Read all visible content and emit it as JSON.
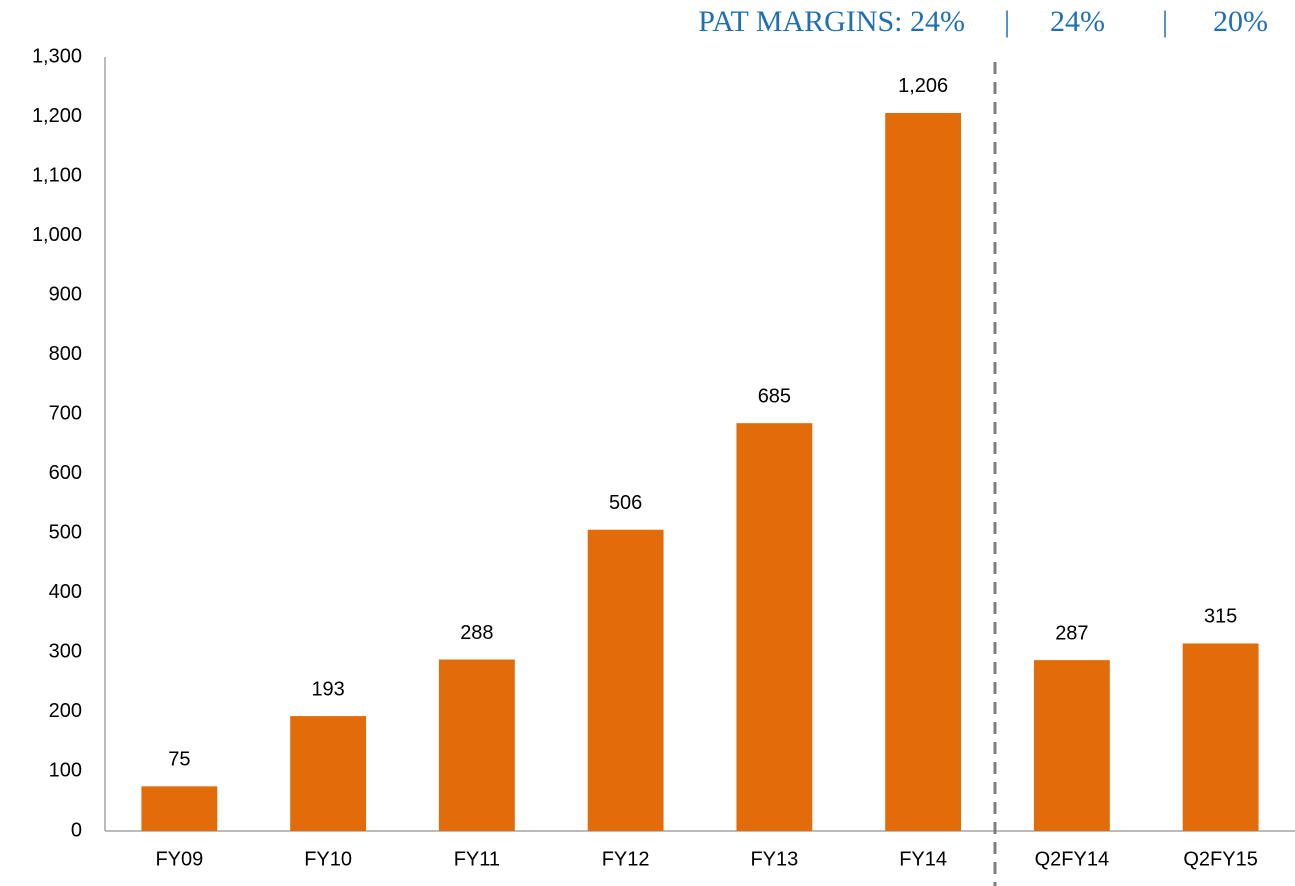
{
  "chart_data": {
    "type": "bar",
    "annotations": [
      "PAT MARGINS: 24%",
      "|",
      "24%",
      "|",
      "20%"
    ],
    "categories": [
      "FY09",
      "FY10",
      "FY11",
      "FY12",
      "FY13",
      "FY14",
      "Q2FY14",
      "Q2FY15"
    ],
    "values": [
      75,
      193,
      288,
      506,
      685,
      1206,
      287,
      315
    ],
    "value_labels": [
      "75",
      "193",
      "288",
      "506",
      "685",
      "1,206",
      "287",
      "315"
    ],
    "color": "#e36c0a",
    "ylim": [
      0,
      1300
    ],
    "yticks": [
      0,
      100,
      200,
      300,
      400,
      500,
      600,
      700,
      800,
      900,
      {
        "value": 1000,
        "label": "1,000"
      },
      {
        "value": 1100,
        "label": "1,100"
      },
      {
        "value": 1200,
        "label": "1,200"
      },
      {
        "value": 1300,
        "label": "1,300"
      }
    ],
    "grid": false
  }
}
